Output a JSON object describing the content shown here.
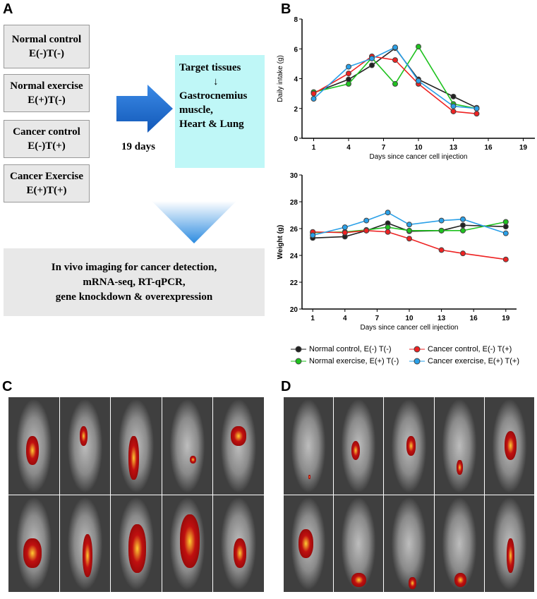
{
  "panel_labels": {
    "a": "A",
    "b": "B",
    "c": "C",
    "d": "D"
  },
  "panel_a": {
    "groups": [
      {
        "name": "Normal control",
        "code": "E(-)T(-)"
      },
      {
        "name": "Normal exercise",
        "code": "E(+)T(-)"
      },
      {
        "name": "Cancer control",
        "code": "E(-)T(+)"
      },
      {
        "name": "Cancer Exercise",
        "code": "E(+)T(+)"
      }
    ],
    "duration": "19 days",
    "target": {
      "title": "Target tissues",
      "arrow": "↓",
      "line1": "Gastrocnemius",
      "line2": "muscle,",
      "line3": "Heart & Lung"
    },
    "analysis": [
      "In vivo imaging for cancer detection,",
      "mRNA-seq, RT-qPCR,",
      "gene knockdown & overexpression"
    ],
    "colors": {
      "arrow": "#1f6fd1",
      "target_bg": "#bff7f7",
      "box_bg": "#e8e8e8"
    }
  },
  "legend": [
    {
      "label": "Normal control, E(-) T(-)",
      "color": "#222222"
    },
    {
      "label": "Normal exercise, E(+) T(-)",
      "color": "#1fc21f"
    },
    {
      "label": "Cancer control, E(-) T(+)",
      "color": "#ee2222"
    },
    {
      "label": "Cancer exercise, E(+) T(+)",
      "color": "#2aa0e8"
    }
  ],
  "chart_data": [
    {
      "type": "line",
      "ylabel": "Daily intake (g)",
      "xlabel": "Days since cancer cell injection",
      "xlim": [
        0,
        20
      ],
      "xticks": [
        "1",
        "4",
        "7",
        "10",
        "13",
        "16",
        "19"
      ],
      "ylim": [
        0,
        8
      ],
      "yticks": [
        "0",
        "2",
        "4",
        "6",
        "8"
      ],
      "grid": false,
      "x": [
        1,
        4,
        6,
        8,
        10,
        13,
        15
      ],
      "series": [
        {
          "name": "Normal control, E(-) T(-)",
          "color": "#222222",
          "values": [
            3.05,
            3.95,
            4.9,
            6.05,
            3.95,
            2.8,
            2.05
          ]
        },
        {
          "name": "Normal exercise, E(+) T(-)",
          "color": "#1fc21f",
          "values": [
            3.1,
            3.65,
            5.4,
            3.65,
            6.15,
            2.3,
            2.0
          ]
        },
        {
          "name": "Cancer control, E(-) T(+)",
          "color": "#ee2222",
          "values": [
            3.0,
            4.35,
            5.5,
            5.25,
            3.65,
            1.8,
            1.65
          ]
        },
        {
          "name": "Cancer exercise, E(+) T(+)",
          "color": "#2aa0e8",
          "values": [
            2.65,
            4.8,
            5.35,
            6.1,
            3.85,
            2.15,
            2.0
          ]
        }
      ]
    },
    {
      "type": "line",
      "ylabel": "Weight (g)",
      "xlabel": "Days since cancer cell injection",
      "xlim": [
        0,
        20
      ],
      "xticks": [
        "1",
        "4",
        "7",
        "10",
        "13",
        "16",
        "19"
      ],
      "ylim": [
        20,
        30
      ],
      "yticks": [
        "20",
        "22",
        "24",
        "26",
        "28",
        "30"
      ],
      "grid": false,
      "legend": "bottom",
      "x": [
        1,
        4,
        6,
        8,
        10,
        13,
        15,
        19
      ],
      "series": [
        {
          "name": "Normal control, E(-) T(-)",
          "color": "#222222",
          "values": [
            25.3,
            25.4,
            25.85,
            26.4,
            25.8,
            25.85,
            26.25,
            26.15
          ]
        },
        {
          "name": "Normal exercise, E(+) T(-)",
          "color": "#1fc21f",
          "values": [
            25.7,
            25.75,
            25.9,
            26.1,
            25.85,
            25.85,
            25.85,
            26.5
          ]
        },
        {
          "name": "Cancer control, E(-) T(+)",
          "color": "#ee2222",
          "values": [
            25.75,
            25.7,
            25.85,
            25.75,
            25.25,
            24.4,
            24.15,
            23.7
          ]
        },
        {
          "name": "Cancer exercise, E(+) T(+)",
          "color": "#2aa0e8",
          "values": [
            25.5,
            26.1,
            26.6,
            27.2,
            26.3,
            26.6,
            26.7,
            25.65
          ]
        }
      ]
    }
  ]
}
